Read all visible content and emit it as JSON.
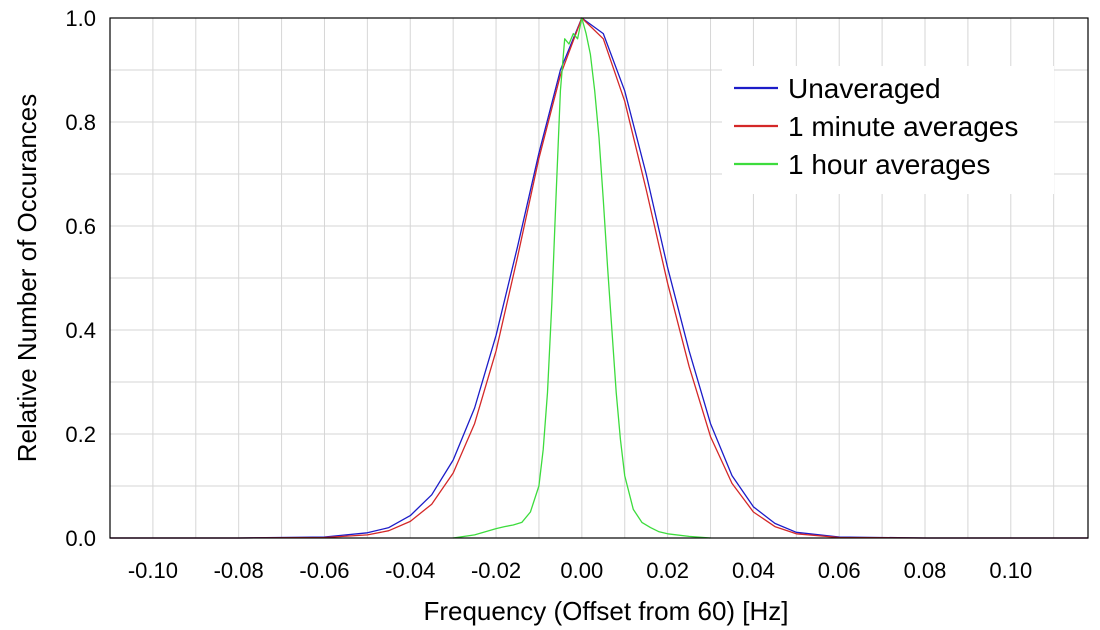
{
  "chart_data": {
    "type": "line",
    "title": "",
    "xlabel": "Frequency (Offset from 60)  [Hz]",
    "ylabel": "Relative Number of Occurances",
    "xlim": [
      -0.11,
      0.118
    ],
    "ylim": [
      0,
      1.0
    ],
    "x_ticks": [
      -0.1,
      -0.08,
      -0.06,
      -0.04,
      -0.02,
      0.0,
      0.02,
      0.04,
      0.06,
      0.08,
      0.1
    ],
    "x_tick_labels": [
      "-0.10",
      "-0.08",
      "-0.06",
      "-0.04",
      "-0.02",
      "0.00",
      "0.02",
      "0.04",
      "0.06",
      "0.08",
      "0.10"
    ],
    "y_ticks": [
      0.0,
      0.2,
      0.4,
      0.6,
      0.8,
      1.0
    ],
    "y_tick_labels": [
      "0.0",
      "0.2",
      "0.4",
      "0.6",
      "0.8",
      "1.0"
    ],
    "grid": true,
    "legend_position": "top-right",
    "series": [
      {
        "name": "Unaveraged",
        "color": "#1c1cc8",
        "x": [
          -0.11,
          -0.08,
          -0.06,
          -0.05,
          -0.045,
          -0.04,
          -0.035,
          -0.03,
          -0.025,
          -0.02,
          -0.015,
          -0.01,
          -0.005,
          0.0,
          0.005,
          0.01,
          0.015,
          0.02,
          0.025,
          0.03,
          0.035,
          0.04,
          0.045,
          0.05,
          0.06,
          0.08,
          0.118
        ],
        "y": [
          0.0,
          0.0,
          0.002,
          0.01,
          0.02,
          0.043,
          0.083,
          0.15,
          0.25,
          0.39,
          0.56,
          0.74,
          0.9,
          1.0,
          0.97,
          0.86,
          0.7,
          0.52,
          0.36,
          0.22,
          0.12,
          0.06,
          0.028,
          0.011,
          0.002,
          0.0,
          0.0
        ]
      },
      {
        "name": "1 minute averages",
        "color": "#d42828",
        "x": [
          -0.11,
          -0.08,
          -0.06,
          -0.05,
          -0.045,
          -0.04,
          -0.035,
          -0.03,
          -0.025,
          -0.02,
          -0.015,
          -0.01,
          -0.005,
          0.0,
          0.005,
          0.01,
          0.015,
          0.02,
          0.025,
          0.03,
          0.035,
          0.04,
          0.045,
          0.05,
          0.06,
          0.08,
          0.118
        ],
        "y": [
          0.0,
          0.0,
          0.001,
          0.006,
          0.014,
          0.032,
          0.065,
          0.125,
          0.22,
          0.36,
          0.54,
          0.73,
          0.89,
          1.0,
          0.96,
          0.84,
          0.67,
          0.49,
          0.33,
          0.195,
          0.105,
          0.05,
          0.022,
          0.008,
          0.001,
          0.0,
          0.0
        ]
      },
      {
        "name": "1 hour averages",
        "color": "#3ddc3d",
        "x": [
          -0.03,
          -0.025,
          -0.02,
          -0.018,
          -0.016,
          -0.014,
          -0.012,
          -0.01,
          -0.009,
          -0.008,
          -0.007,
          -0.006,
          -0.005,
          -0.004,
          -0.003,
          -0.002,
          -0.001,
          0.0,
          0.001,
          0.002,
          0.003,
          0.004,
          0.005,
          0.006,
          0.007,
          0.008,
          0.009,
          0.01,
          0.012,
          0.014,
          0.016,
          0.018,
          0.02,
          0.025,
          0.03
        ],
        "y": [
          0.0,
          0.006,
          0.018,
          0.022,
          0.025,
          0.03,
          0.05,
          0.1,
          0.17,
          0.28,
          0.45,
          0.66,
          0.86,
          0.96,
          0.95,
          0.97,
          0.96,
          1.0,
          0.97,
          0.93,
          0.86,
          0.77,
          0.65,
          0.52,
          0.4,
          0.28,
          0.19,
          0.12,
          0.055,
          0.03,
          0.02,
          0.012,
          0.008,
          0.003,
          0.0
        ]
      }
    ]
  }
}
